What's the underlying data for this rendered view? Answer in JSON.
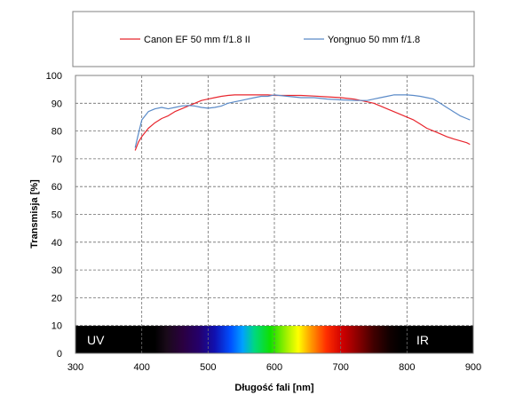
{
  "chart_data": {
    "type": "line",
    "title": "",
    "xlabel": "Długość fali [nm]",
    "ylabel": "Transmisja [%]",
    "xlim": [
      300,
      900
    ],
    "ylim": [
      0,
      100
    ],
    "x_ticks": [
      "300",
      "400",
      "500",
      "600",
      "700",
      "800",
      "900"
    ],
    "y_ticks": [
      "0",
      "10",
      "20",
      "30",
      "40",
      "50",
      "60",
      "70",
      "80",
      "90",
      "100"
    ],
    "grid": true,
    "legend_position": "top",
    "band_labels": {
      "uv": "UV",
      "ir": "IR"
    },
    "series": [
      {
        "name": "Canon EF 50 mm f/1.8 II",
        "color": "#e8262e",
        "x": [
          390,
          395,
          400,
          410,
          420,
          430,
          440,
          450,
          460,
          470,
          480,
          490,
          500,
          510,
          520,
          530,
          540,
          550,
          560,
          570,
          580,
          590,
          600,
          620,
          640,
          660,
          680,
          700,
          720,
          740,
          750,
          760,
          770,
          780,
          790,
          800,
          810,
          820,
          830,
          840,
          850,
          860,
          870,
          880,
          890,
          895
        ],
        "values": [
          73,
          76,
          78,
          81,
          83,
          84.5,
          85.5,
          87,
          88,
          89,
          90,
          91,
          91.5,
          92,
          92.5,
          92.8,
          93,
          93,
          93,
          93,
          93,
          93,
          92.8,
          92.8,
          92.8,
          92.6,
          92.3,
          92,
          91.5,
          90.5,
          90,
          89,
          88,
          87,
          86,
          85,
          84,
          82.5,
          81,
          80,
          79,
          78,
          77.2,
          76.5,
          75.8,
          75.2
        ]
      },
      {
        "name": "Yongnuo 50 mm f/1.8",
        "color": "#5b8bc8",
        "x": [
          390,
          395,
          400,
          410,
          420,
          430,
          440,
          450,
          460,
          470,
          480,
          490,
          500,
          510,
          520,
          530,
          540,
          550,
          560,
          570,
          580,
          590,
          600,
          620,
          640,
          660,
          680,
          700,
          720,
          740,
          750,
          760,
          770,
          780,
          790,
          800,
          810,
          820,
          830,
          840,
          850,
          860,
          870,
          880,
          890,
          895
        ],
        "values": [
          74,
          79,
          84,
          87,
          88,
          88.5,
          88,
          88.5,
          89,
          89.2,
          89,
          88.5,
          88.2,
          88.5,
          89,
          90,
          90.5,
          91,
          91.5,
          92,
          92.5,
          92.5,
          93,
          92.5,
          92,
          92,
          91.5,
          91.2,
          91,
          91,
          91.5,
          92,
          92.5,
          93,
          93,
          93,
          92.8,
          92.5,
          92,
          91.5,
          90,
          88.5,
          87,
          85.5,
          84.5,
          84
        ]
      }
    ]
  }
}
